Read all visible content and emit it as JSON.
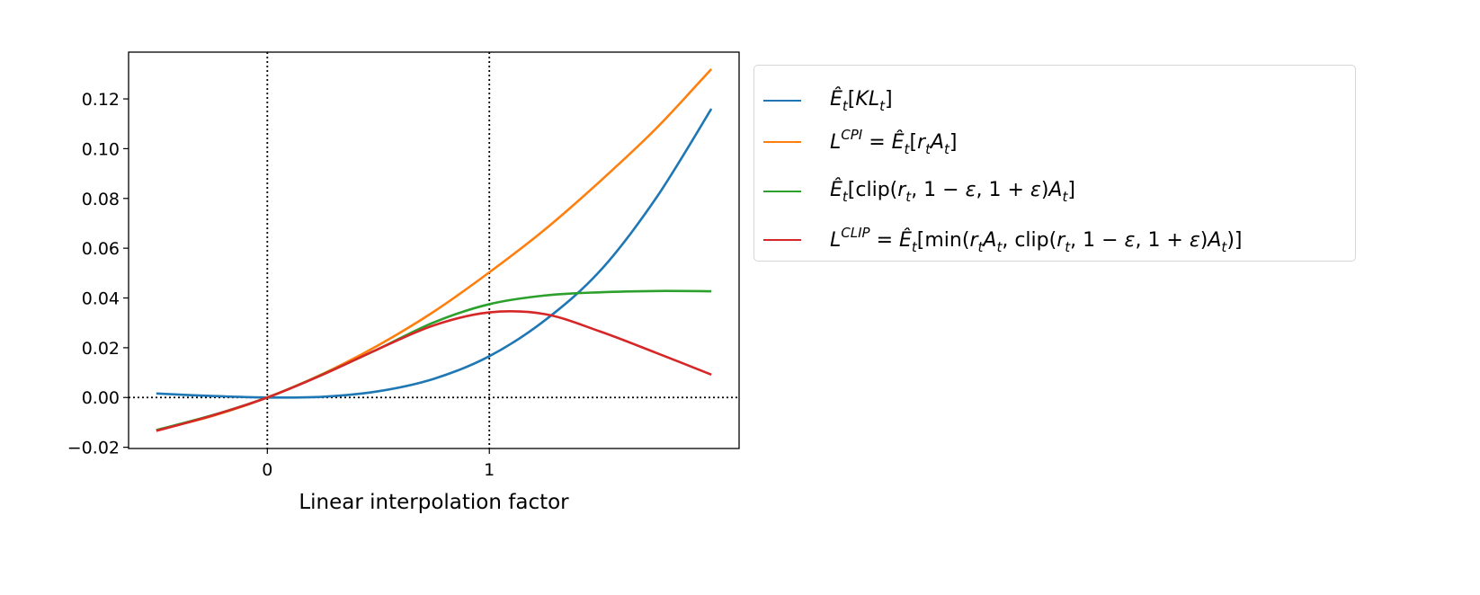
{
  "chart_data": {
    "type": "line",
    "title": "",
    "xlabel": "Linear interpolation factor",
    "ylabel": "",
    "xlim": [
      -0.625,
      2.125
    ],
    "ylim": [
      -0.0205,
      0.1388
    ],
    "xticks": [
      {
        "v": 0,
        "label": "0"
      },
      {
        "v": 1,
        "label": "1"
      }
    ],
    "yticks": [
      {
        "v": -0.02,
        "label": "−0.02"
      },
      {
        "v": 0,
        "label": "0.00"
      },
      {
        "v": 0.02,
        "label": "0.02"
      },
      {
        "v": 0.04,
        "label": "0.04"
      },
      {
        "v": 0.06,
        "label": "0.06"
      },
      {
        "v": 0.08,
        "label": "0.08"
      },
      {
        "v": 0.1,
        "label": "0.10"
      },
      {
        "v": 0.12,
        "label": "0.12"
      }
    ],
    "reference_lines": {
      "vertical": [
        0,
        1
      ],
      "horizontal": [
        0
      ],
      "style": "dotted",
      "color": "#000000"
    },
    "grid": false,
    "legend_placement": "outside-right-top",
    "x": [
      -0.5,
      -0.25,
      0,
      0.25,
      0.5,
      0.75,
      1.0,
      1.25,
      1.5,
      1.75,
      2.0
    ],
    "series": [
      {
        "color": "#1f77b4",
        "values": [
          0.0016,
          0.0006,
          0,
          0.0003,
          0.0025,
          0.0075,
          0.0166,
          0.031,
          0.051,
          0.08,
          0.116
        ],
        "legend": [
          [
            "Ê",
            "i"
          ],
          [
            "t",
            "sub"
          ],
          [
            "[",
            "n"
          ],
          [
            "KL",
            "i"
          ],
          [
            "t",
            "sub"
          ],
          [
            "]",
            "n"
          ]
        ]
      },
      {
        "color": "#ff7f0e",
        "values": [
          -0.0131,
          -0.0075,
          0,
          0.0095,
          0.021,
          0.0345,
          0.0503,
          0.0675,
          0.087,
          0.108,
          0.132
        ],
        "legend": [
          [
            "L",
            "i"
          ],
          [
            "CPI",
            "sup"
          ],
          [
            " = ",
            "n"
          ],
          [
            "Ê",
            "i"
          ],
          [
            "t",
            "sub"
          ],
          [
            "[",
            "n"
          ],
          [
            "r",
            "i"
          ],
          [
            "t",
            "sub"
          ],
          [
            "A",
            "i"
          ],
          [
            "t",
            "sub"
          ],
          [
            "]",
            "n"
          ]
        ]
      },
      {
        "color": "#2ca02c",
        "values": [
          -0.0131,
          -0.0072,
          0,
          0.0093,
          0.0195,
          0.0302,
          0.0375,
          0.041,
          0.0423,
          0.0428,
          0.0427
        ],
        "legend": [
          [
            "Ê",
            "i"
          ],
          [
            "t",
            "sub"
          ],
          [
            "[clip(",
            "n"
          ],
          [
            "r",
            "i"
          ],
          [
            "t",
            "sub"
          ],
          [
            ", 1 − ",
            "n"
          ],
          [
            "ε",
            "i"
          ],
          [
            ", 1 + ",
            "n"
          ],
          [
            "ε",
            "i"
          ],
          [
            ")",
            "n"
          ],
          [
            "A",
            "i"
          ],
          [
            "t",
            "sub"
          ],
          [
            "]",
            "n"
          ]
        ]
      },
      {
        "color": "#d62728",
        "values": [
          -0.0134,
          -0.0073,
          0,
          0.0092,
          0.0195,
          0.029,
          0.0342,
          0.0335,
          0.0265,
          0.018,
          0.0092
        ],
        "legend": [
          [
            "L",
            "i"
          ],
          [
            "CLIP",
            "sup"
          ],
          [
            " = ",
            "n"
          ],
          [
            "Ê",
            "i"
          ],
          [
            "t",
            "sub"
          ],
          [
            "[min(",
            "n"
          ],
          [
            "r",
            "i"
          ],
          [
            "t",
            "sub"
          ],
          [
            "A",
            "i"
          ],
          [
            "t",
            "sub"
          ],
          [
            ", clip(",
            "n"
          ],
          [
            "r",
            "i"
          ],
          [
            "t",
            "sub"
          ],
          [
            ", 1 − ",
            "n"
          ],
          [
            "ε",
            "i"
          ],
          [
            ", 1 + ",
            "n"
          ],
          [
            "ε",
            "i"
          ],
          [
            ")",
            "n"
          ],
          [
            "A",
            "i"
          ],
          [
            "t",
            "sub"
          ],
          [
            ")]",
            "n"
          ]
        ]
      }
    ]
  }
}
